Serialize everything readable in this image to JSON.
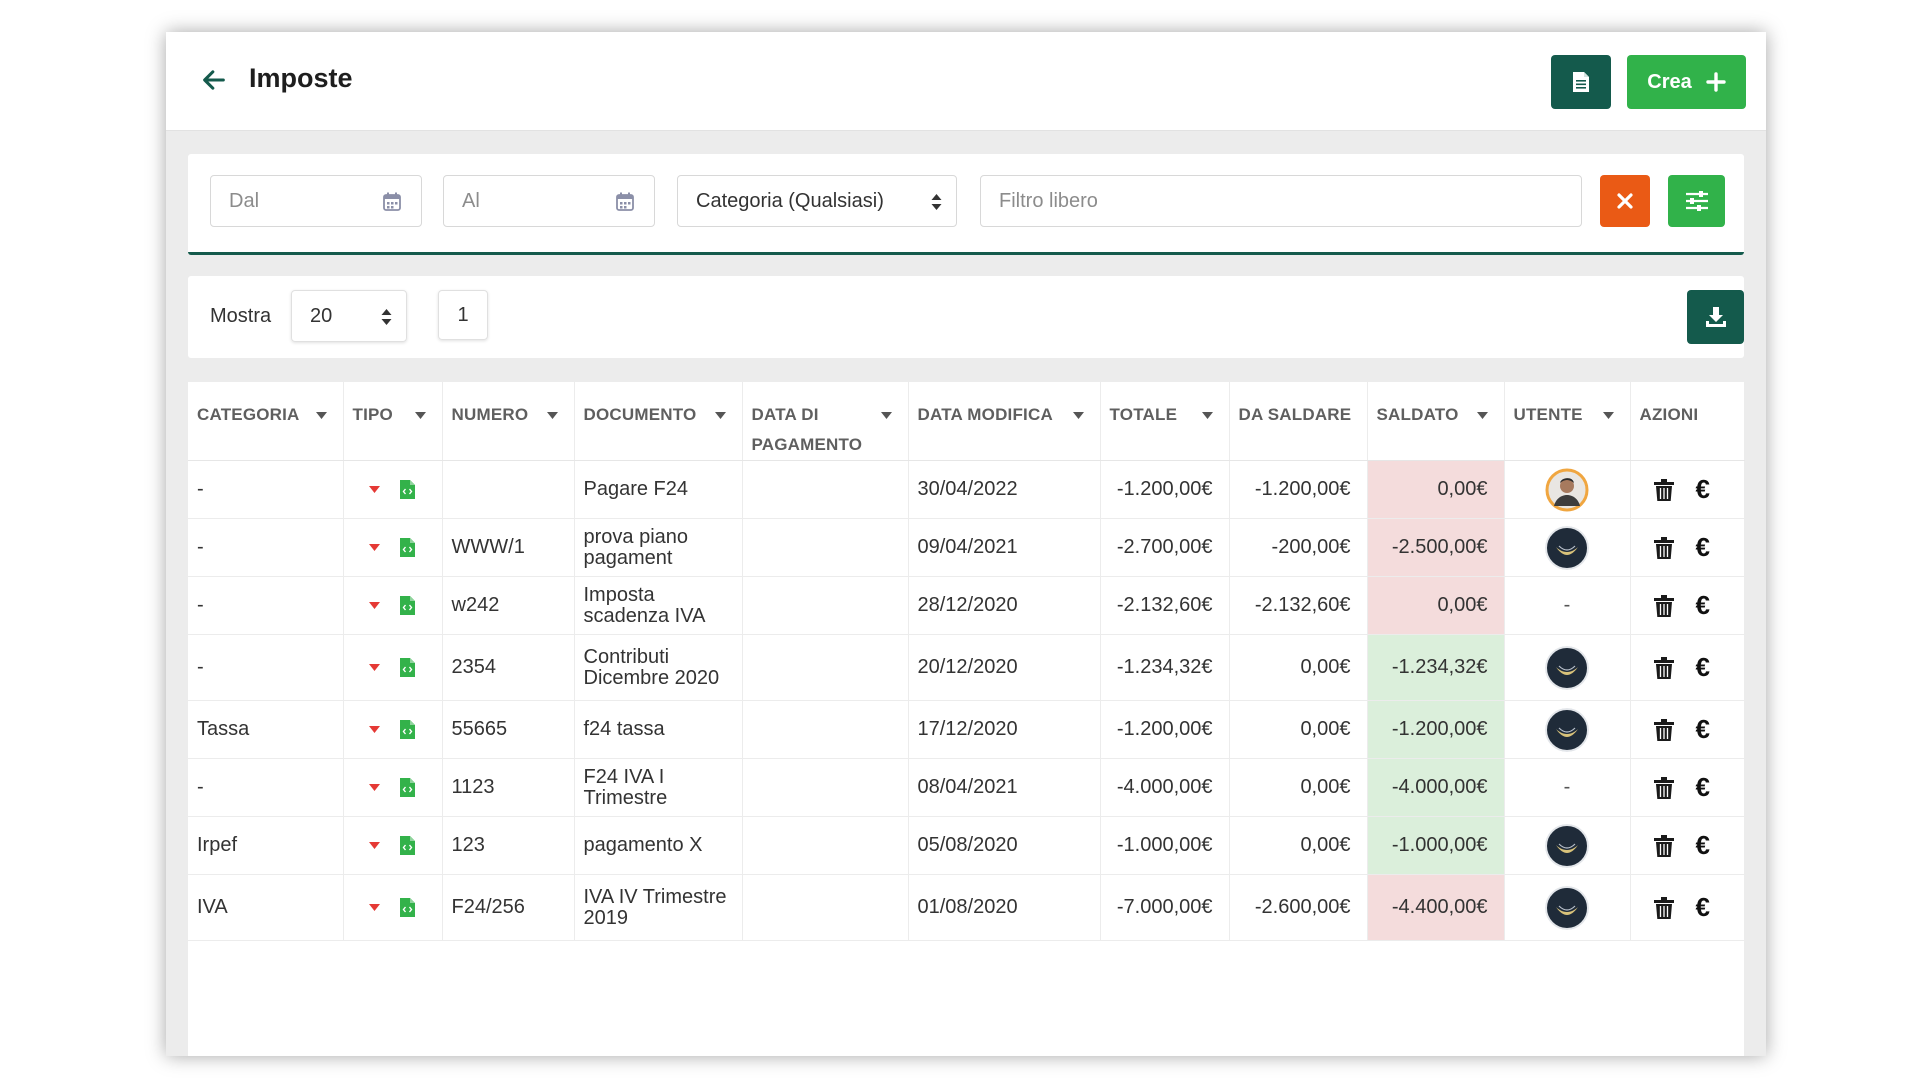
{
  "header": {
    "title": "Imposte",
    "create_label": "Crea"
  },
  "filters": {
    "from_placeholder": "Dal",
    "to_placeholder": "Al",
    "category_value": "Categoria (Qualsiasi)",
    "free_filter_placeholder": "Filtro libero"
  },
  "pagination": {
    "show_label": "Mostra",
    "page_size": "20",
    "page": "1"
  },
  "table": {
    "columns": [
      "CATEGORIA",
      "TIPO",
      "NUMERO",
      "DOCUMENTO",
      "DATA DI PAGAMENTO",
      "DATA MODIFICA",
      "TOTALE",
      "DA SALDARE",
      "SALDATO",
      "UTENTE",
      "AZIONI"
    ],
    "rows": [
      {
        "categoria": "-",
        "numero": "",
        "documento": "Pagare F24",
        "data_pagamento": "",
        "data_modifica": "30/04/2022",
        "totale": "-1.200,00€",
        "da_saldare": "-1.200,00€",
        "saldato": "0,00€",
        "saldato_status": "pink",
        "utente": "photo",
        "utente_text": ""
      },
      {
        "categoria": "-",
        "numero": "WWW/1",
        "documento": "prova piano pagament",
        "data_pagamento": "",
        "data_modifica": "09/04/2021",
        "totale": "-2.700,00€",
        "da_saldare": "-200,00€",
        "saldato": "-2.500,00€",
        "saldato_status": "pink",
        "utente": "logo",
        "utente_text": ""
      },
      {
        "categoria": "-",
        "numero": "w242",
        "documento": "Imposta scadenza IVA",
        "data_pagamento": "",
        "data_modifica": "28/12/2020",
        "totale": "-2.132,60€",
        "da_saldare": "-2.132,60€",
        "saldato": "0,00€",
        "saldato_status": "pink",
        "utente": "none",
        "utente_text": "-"
      },
      {
        "categoria": "-",
        "numero": "2354",
        "documento": "Contributi Dicembre 2020",
        "data_pagamento": "",
        "data_modifica": "20/12/2020",
        "totale": "-1.234,32€",
        "da_saldare": "0,00€",
        "saldato": "-1.234,32€",
        "saldato_status": "green",
        "utente": "logo",
        "utente_text": ""
      },
      {
        "categoria": "Tassa",
        "numero": "55665",
        "documento": "f24 tassa",
        "data_pagamento": "",
        "data_modifica": "17/12/2020",
        "totale": "-1.200,00€",
        "da_saldare": "0,00€",
        "saldato": "-1.200,00€",
        "saldato_status": "green",
        "utente": "logo",
        "utente_text": ""
      },
      {
        "categoria": "-",
        "numero": "1123",
        "documento": "F24 IVA I Trimestre",
        "data_pagamento": "",
        "data_modifica": "08/04/2021",
        "totale": "-4.000,00€",
        "da_saldare": "0,00€",
        "saldato": "-4.000,00€",
        "saldato_status": "green",
        "utente": "none",
        "utente_text": "-"
      },
      {
        "categoria": "Irpef",
        "numero": "123",
        "documento": "pagamento X",
        "data_pagamento": "",
        "data_modifica": "05/08/2020",
        "totale": "-1.000,00€",
        "da_saldare": "0,00€",
        "saldato": "-1.000,00€",
        "saldato_status": "green",
        "utente": "logo",
        "utente_text": ""
      },
      {
        "categoria": "IVA",
        "numero": "F24/256",
        "documento": "IVA IV Trimestre 2019",
        "data_pagamento": "",
        "data_modifica": "01/08/2020",
        "totale": "-7.000,00€",
        "da_saldare": "-2.600,00€",
        "saldato": "-4.400,00€",
        "saldato_status": "pink",
        "utente": "logo",
        "utente_text": ""
      }
    ],
    "euro_symbol": "€"
  },
  "colors": {
    "primary_dark": "#145a4c",
    "accent_green": "#31b24a",
    "danger_orange": "#ea5a15",
    "saldato_pink": "#f4dcdc",
    "saldato_green": "#dbefdb"
  },
  "icons": {
    "back": "arrow-left-icon",
    "document": "document-icon",
    "plus": "plus-icon",
    "calendar": "calendar-icon",
    "sort": "sort-icon",
    "clear": "close-icon",
    "advanced": "sliders-icon",
    "download": "download-icon",
    "type_expense": "caret-down-icon",
    "type_file": "code-file-icon",
    "delete": "trash-icon",
    "pay": "euro-icon"
  }
}
